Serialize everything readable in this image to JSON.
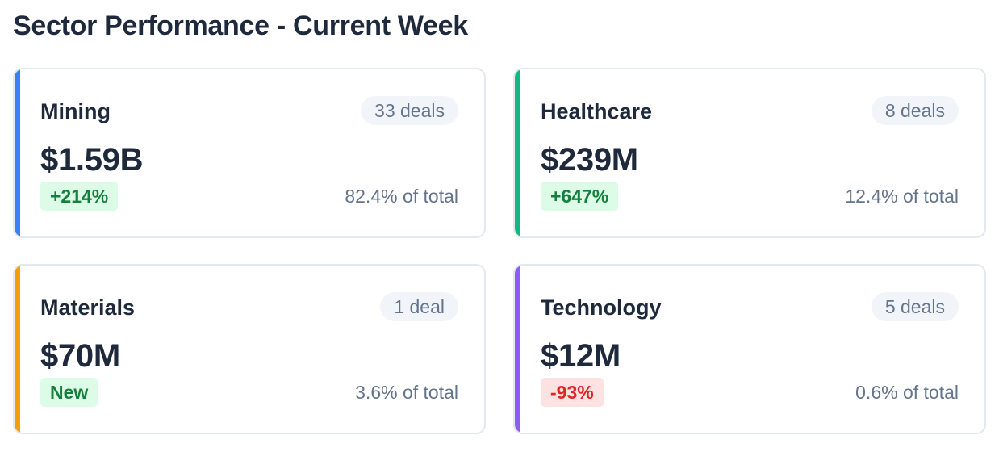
{
  "page": {
    "title": "Sector Performance - Current Week"
  },
  "cards": [
    {
      "name": "Mining",
      "deals": "33 deals",
      "amount": "$1.59B",
      "change": "+214%",
      "change_type": "positive",
      "share": "82.4% of total",
      "accent_color": "#3b82f6"
    },
    {
      "name": "Healthcare",
      "deals": "8 deals",
      "amount": "$239M",
      "change": "+647%",
      "change_type": "positive",
      "share": "12.4% of total",
      "accent_color": "#10b981"
    },
    {
      "name": "Materials",
      "deals": "1 deal",
      "amount": "$70M",
      "change": "New",
      "change_type": "positive",
      "share": "3.6% of total",
      "accent_color": "#f59e0b"
    },
    {
      "name": "Technology",
      "deals": "5 deals",
      "amount": "$12M",
      "change": "-93%",
      "change_type": "negative",
      "share": "0.6% of total",
      "accent_color": "#8b5cf6"
    }
  ],
  "colors": {
    "positive_bg": "#dcfce7",
    "positive_text": "#15803d",
    "negative_bg": "#fee2e2",
    "negative_text": "#dc2626"
  }
}
